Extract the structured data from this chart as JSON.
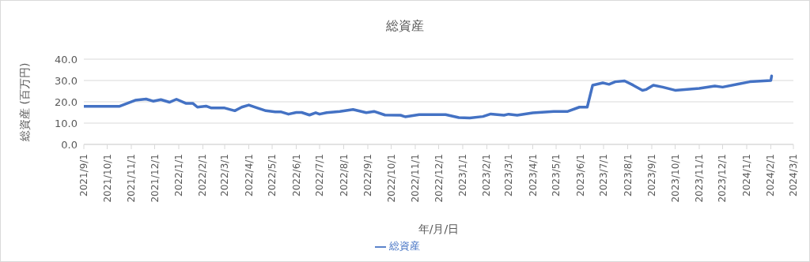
{
  "chart_data": {
    "type": "line",
    "title": "総資産",
    "xlabel": "年/月/日",
    "ylabel": "総資産 (百万円)",
    "x": [
      "2021-09-01",
      "2021-10-17",
      "2021-11-06",
      "2021-11-20",
      "2021-11-29",
      "2021-12-09",
      "2021-12-20",
      "2021-12-29",
      "2022-01-10",
      "2022-01-19",
      "2022-01-25",
      "2022-02-05",
      "2022-02-12",
      "2022-03-01",
      "2022-03-14",
      "2022-03-23",
      "2022-04-01",
      "2022-04-13",
      "2022-04-23",
      "2022-05-05",
      "2022-05-12",
      "2022-05-22",
      "2022-06-01",
      "2022-06-08",
      "2022-06-18",
      "2022-06-26",
      "2022-07-01",
      "2022-07-10",
      "2022-07-27",
      "2022-08-13",
      "2022-08-30",
      "2022-09-09",
      "2022-09-23",
      "2022-10-13",
      "2022-10-19",
      "2022-11-06",
      "2022-12-10",
      "2022-12-27",
      "2023-01-10",
      "2023-01-27",
      "2023-02-06",
      "2023-02-23",
      "2023-03-01",
      "2023-03-12",
      "2023-04-01",
      "2023-04-28",
      "2023-05-16",
      "2023-05-31",
      "2023-06-10",
      "2023-06-17",
      "2023-06-30",
      "2023-07-08",
      "2023-07-16",
      "2023-07-28",
      "2023-08-08",
      "2023-08-20",
      "2023-08-25",
      "2023-09-03",
      "2023-09-15",
      "2023-10-01",
      "2023-11-01",
      "2023-11-21",
      "2023-12-01",
      "2023-12-21",
      "2024-01-05",
      "2024-02-01",
      "2024-02-02"
    ],
    "series": [
      {
        "name": "総資産",
        "color": "#4472c4",
        "values": [
          17.9,
          17.9,
          20.7,
          21.3,
          20.3,
          21.0,
          19.8,
          21.2,
          19.3,
          19.3,
          17.5,
          18.0,
          17.1,
          17.1,
          15.8,
          17.5,
          18.5,
          17.0,
          15.8,
          15.3,
          15.3,
          14.2,
          15.0,
          15.0,
          13.8,
          14.9,
          14.2,
          14.9,
          15.5,
          16.4,
          14.9,
          15.5,
          13.8,
          13.7,
          13.0,
          14.0,
          14.0,
          12.6,
          12.4,
          13.1,
          14.3,
          13.7,
          14.2,
          13.7,
          14.8,
          15.5,
          15.5,
          17.5,
          17.5,
          27.8,
          28.9,
          28.2,
          29.4,
          29.8,
          27.8,
          25.4,
          25.8,
          27.8,
          26.9,
          25.4,
          26.3,
          27.4,
          26.9,
          28.3,
          29.4,
          30.0,
          32.1
        ]
      }
    ],
    "xlim": [
      "2021-09-01",
      "2024-03-01"
    ],
    "xticks": [
      {
        "value": "2021-09-01",
        "label": "2021/9/1"
      },
      {
        "value": "2021-10-01",
        "label": "2021/10/1"
      },
      {
        "value": "2021-11-01",
        "label": "2021/11/1"
      },
      {
        "value": "2021-12-01",
        "label": "2021/12/1"
      },
      {
        "value": "2022-01-01",
        "label": "2022/1/1"
      },
      {
        "value": "2022-02-01",
        "label": "2022/2/1"
      },
      {
        "value": "2022-03-01",
        "label": "2022/3/1"
      },
      {
        "value": "2022-04-01",
        "label": "2022/4/1"
      },
      {
        "value": "2022-05-01",
        "label": "2022/5/1"
      },
      {
        "value": "2022-06-01",
        "label": "2022/6/1"
      },
      {
        "value": "2022-07-01",
        "label": "2022/7/1"
      },
      {
        "value": "2022-08-01",
        "label": "2022/8/1"
      },
      {
        "value": "2022-09-01",
        "label": "2022/9/1"
      },
      {
        "value": "2022-10-01",
        "label": "2022/10/1"
      },
      {
        "value": "2022-11-01",
        "label": "2022/11/1"
      },
      {
        "value": "2022-12-01",
        "label": "2022/12/1"
      },
      {
        "value": "2023-01-01",
        "label": "2023/1/1"
      },
      {
        "value": "2023-02-01",
        "label": "2023/2/1"
      },
      {
        "value": "2023-03-01",
        "label": "2023/3/1"
      },
      {
        "value": "2023-04-01",
        "label": "2023/4/1"
      },
      {
        "value": "2023-05-01",
        "label": "2023/5/1"
      },
      {
        "value": "2023-06-01",
        "label": "2023/6/1"
      },
      {
        "value": "2023-07-01",
        "label": "2023/7/1"
      },
      {
        "value": "2023-08-01",
        "label": "2023/8/1"
      },
      {
        "value": "2023-09-01",
        "label": "2023/9/1"
      },
      {
        "value": "2023-10-01",
        "label": "2023/10/1"
      },
      {
        "value": "2023-11-01",
        "label": "2023/11/1"
      },
      {
        "value": "2023-12-01",
        "label": "2023/12/1"
      },
      {
        "value": "2024-01-01",
        "label": "2024/1/1"
      },
      {
        "value": "2024-02-01",
        "label": "2024/2/1"
      },
      {
        "value": "2024-03-01",
        "label": "2024/3/1"
      }
    ],
    "ylim": [
      0,
      40
    ],
    "yticks": [
      {
        "value": 0,
        "label": "0.0"
      },
      {
        "value": 10,
        "label": "10.0"
      },
      {
        "value": 20,
        "label": "20.0"
      },
      {
        "value": 30,
        "label": "30.0"
      },
      {
        "value": 40,
        "label": "40.0"
      }
    ],
    "grid": "y",
    "legend": "bottom",
    "marker": "none",
    "line_style": "solid"
  }
}
